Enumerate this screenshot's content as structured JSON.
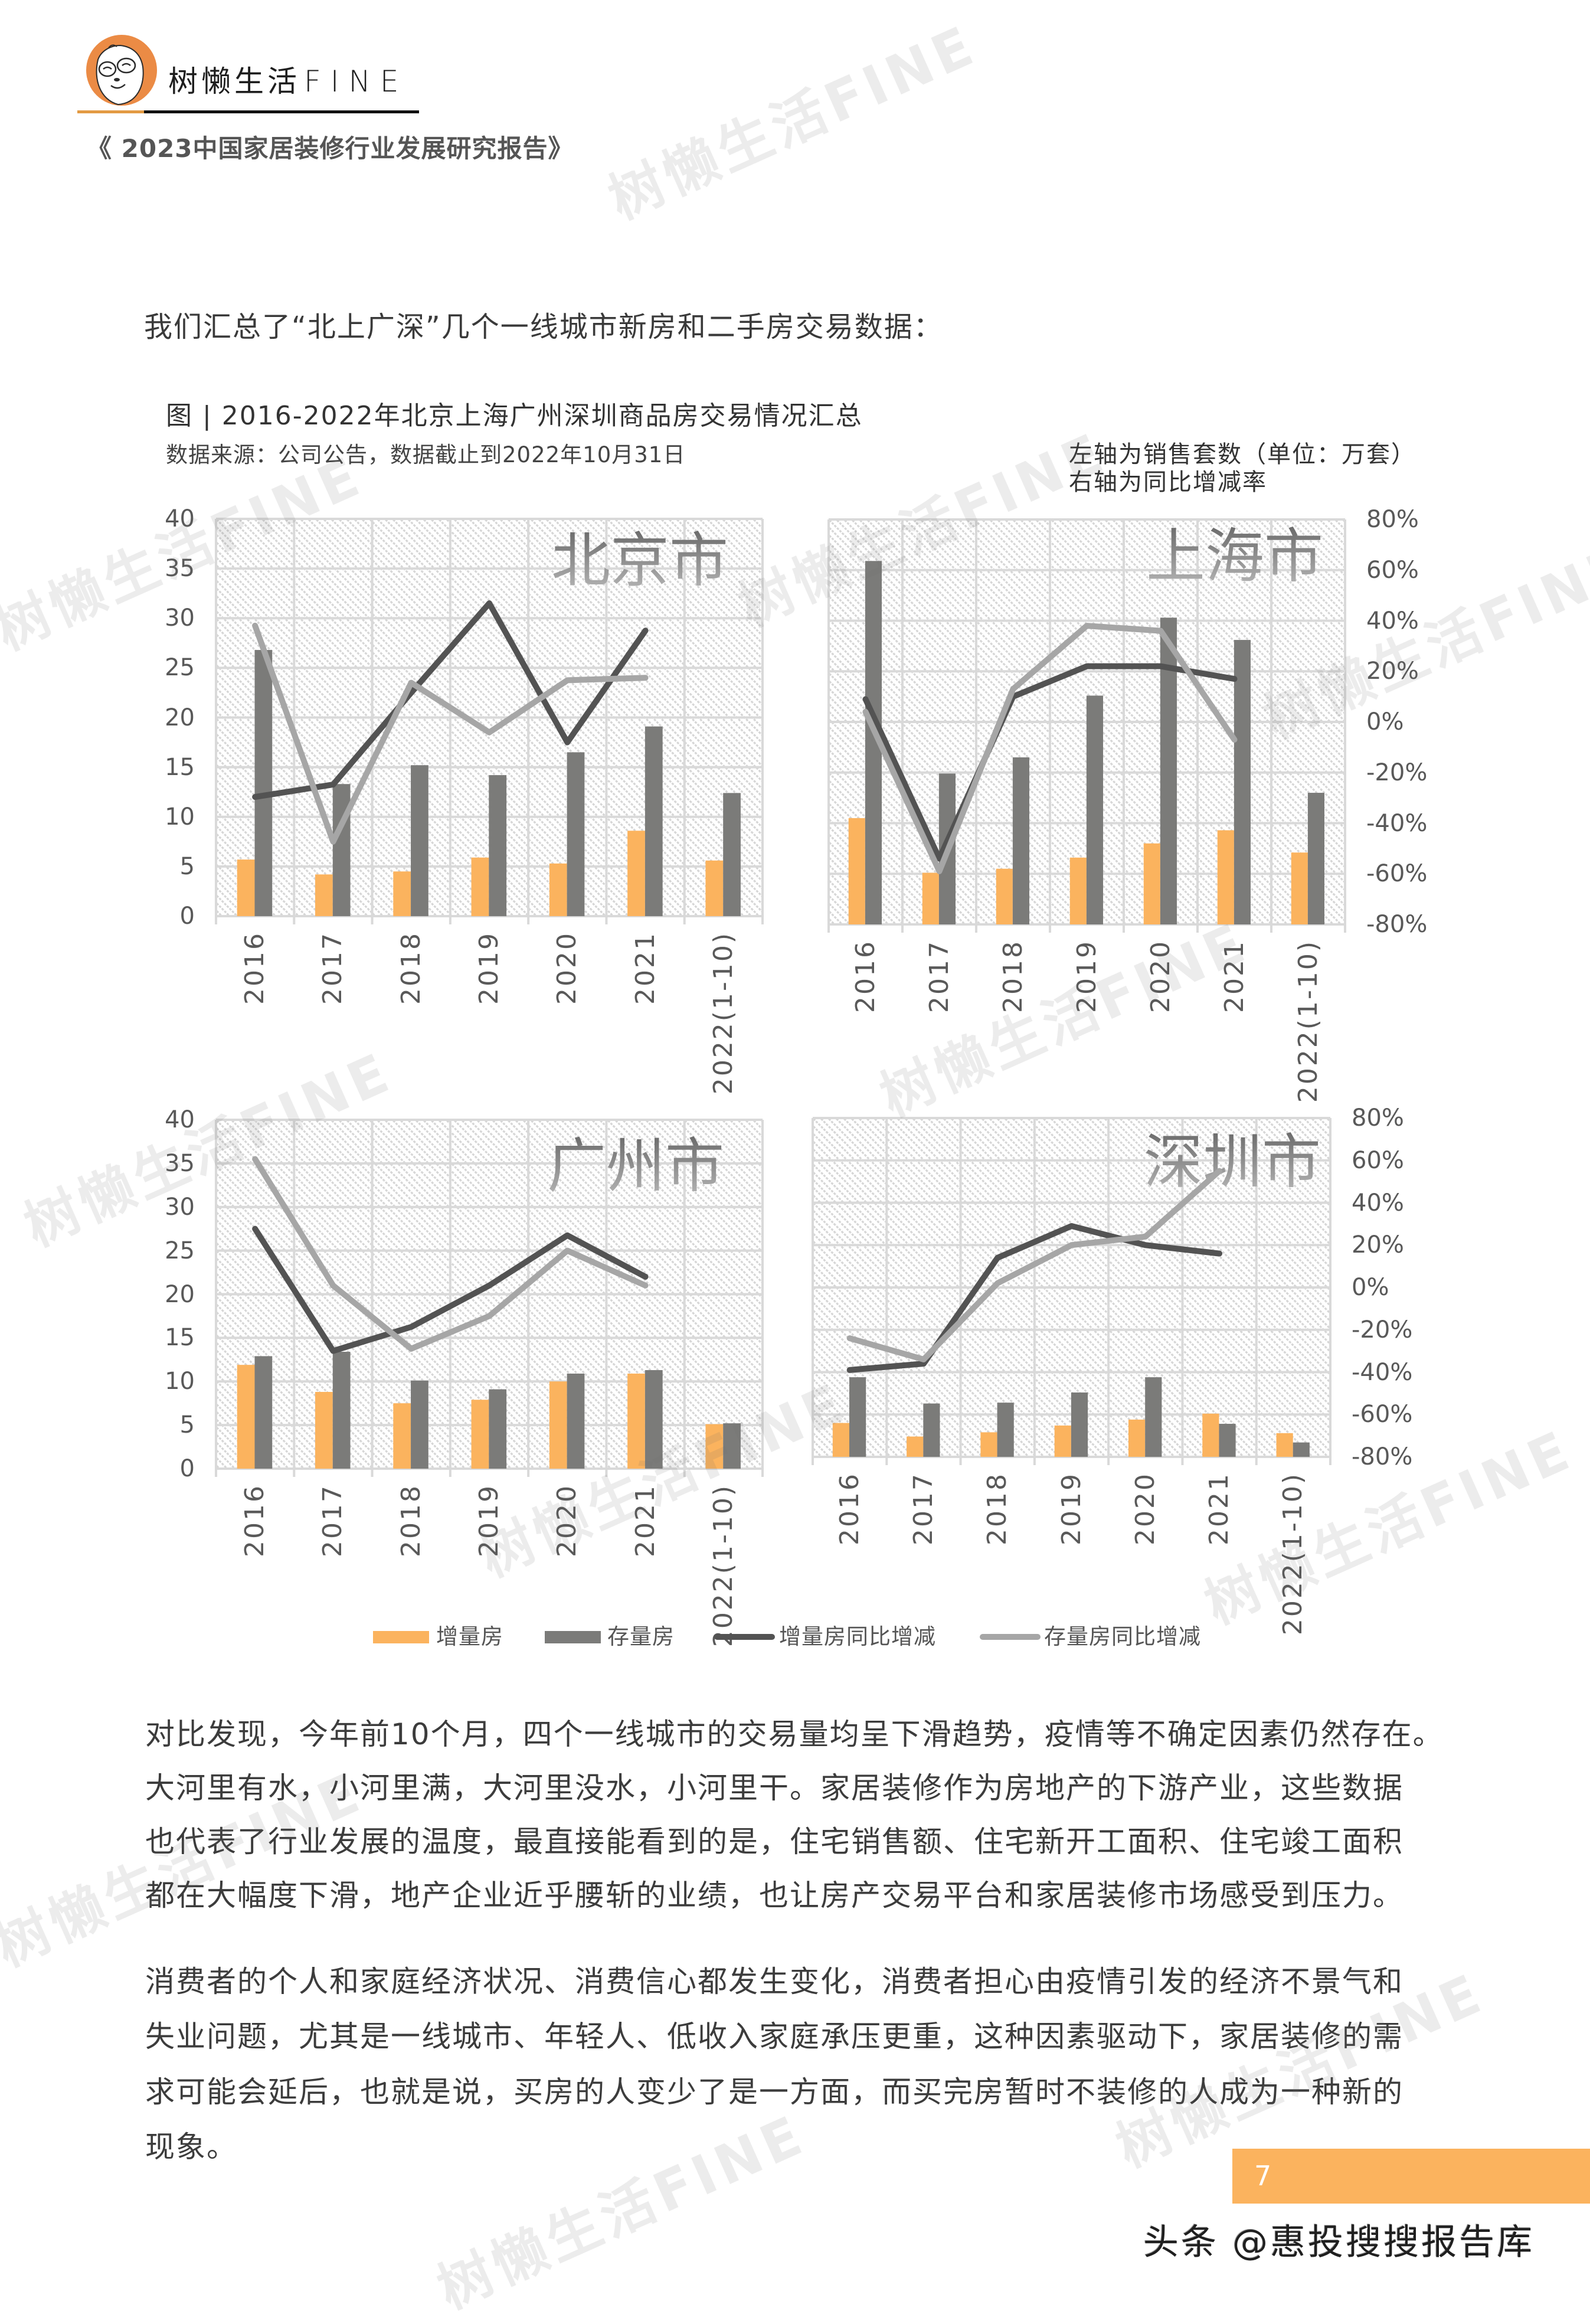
{
  "header": {
    "logo_text_cn": "树懒生活",
    "logo_text_en": "FINE",
    "report_title": "《 2023中国家居装修行业发展研究报告》"
  },
  "intro_text": "我们汇总了“北上广深”几个一线城市新房和二手房交易数据：",
  "figure": {
    "title": "图 | 2016-2022年北京上海广州深圳商品房交易情况汇总",
    "source": "数据来源：公司公告，数据截止到2022年10月31日",
    "axis_note_left": "左轴为销售套数（单位：万套）",
    "axis_note_right": "右轴为同比增减率"
  },
  "colors": {
    "new_bar": "#FBB35E",
    "existing_bar": "#7B7B79",
    "new_yoy_line": "#535353",
    "existing_yoy_line": "#A6A6A6",
    "page_box": "#FBB35E",
    "accent_rule": "#E39A43"
  },
  "legend": [
    {
      "label": "增量房",
      "kind": "bar",
      "color": "#FBB35E"
    },
    {
      "label": "存量房",
      "kind": "bar",
      "color": "#7B7B79"
    },
    {
      "label": "增量房同比增减",
      "kind": "line",
      "color": "#535353"
    },
    {
      "label": "存量房同比增减",
      "kind": "line",
      "color": "#A6A6A6"
    }
  ],
  "chart_data": [
    {
      "type": "bar+line",
      "title": "北京市",
      "categories": [
        "2016",
        "2017",
        "2018",
        "2019",
        "2020",
        "2021",
        "2022(1-10)"
      ],
      "left_axis": {
        "visible": true,
        "range": [
          0,
          40
        ],
        "ticks": [
          "40",
          "35",
          "30",
          "25",
          "20",
          "15",
          "10",
          "5",
          "0"
        ]
      },
      "right_axis": {
        "visible": false,
        "range": [
          -80,
          80
        ],
        "ticks": [
          "80%",
          "60%",
          "40%",
          "20%",
          "0%",
          "-20%",
          "-40%",
          "-60%",
          "-80%"
        ]
      },
      "grid": true,
      "series": [
        {
          "name": "增量房",
          "type": "bar",
          "axis": "left",
          "color": "#FBB35E",
          "values": [
            5.7,
            4.2,
            4.5,
            5.9,
            5.3,
            8.6,
            5.6
          ]
        },
        {
          "name": "存量房",
          "type": "bar",
          "axis": "left",
          "color": "#7B7B79",
          "values": [
            26.8,
            13.3,
            15.2,
            14.2,
            16.5,
            19.1,
            12.4
          ]
        },
        {
          "name": "增量房同比增减",
          "type": "line",
          "axis": "right",
          "unit": "%",
          "color": "#535353",
          "values": [
            -32,
            -27,
            10,
            46,
            -10,
            35,
            null
          ]
        },
        {
          "name": "存量房同比增减",
          "type": "line",
          "axis": "right",
          "unit": "%",
          "color": "#A6A6A6",
          "values": [
            37,
            -50,
            14,
            -6,
            15,
            16,
            null
          ]
        }
      ]
    },
    {
      "type": "bar+line",
      "title": "上海市",
      "categories": [
        "2016",
        "2017",
        "2018",
        "2019",
        "2020",
        "2021",
        "2022(1-10)"
      ],
      "left_axis": {
        "visible": false,
        "range": [
          0,
          40
        ],
        "ticks": [
          "40",
          "35",
          "30",
          "25",
          "20",
          "15",
          "10",
          "5",
          "0"
        ]
      },
      "right_axis": {
        "visible": true,
        "range": [
          -80,
          80
        ],
        "ticks": [
          "80%",
          "60%",
          "40%",
          "20%",
          "0%",
          "-20%",
          "-40%",
          "-60%",
          "-80%"
        ]
      },
      "grid": true,
      "series": [
        {
          "name": "增量房",
          "type": "bar",
          "axis": "left",
          "color": "#FBB35E",
          "values": [
            10.5,
            5.1,
            5.5,
            6.6,
            8.0,
            9.3,
            7.1
          ]
        },
        {
          "name": "存量房",
          "type": "bar",
          "axis": "left",
          "color": "#7B7B79",
          "values": [
            35.9,
            14.9,
            16.5,
            22.6,
            30.3,
            28.1,
            13.0
          ]
        },
        {
          "name": "增量房同比增减",
          "type": "line",
          "axis": "right",
          "unit": "%",
          "color": "#535353",
          "values": [
            9,
            -54,
            10,
            22,
            22,
            17,
            null
          ]
        },
        {
          "name": "存量房同比增减",
          "type": "line",
          "axis": "right",
          "unit": "%",
          "color": "#A6A6A6",
          "values": [
            4,
            -59,
            13,
            38,
            36,
            -7,
            null
          ]
        }
      ]
    },
    {
      "type": "bar+line",
      "title": "广州市",
      "categories": [
        "2016",
        "2017",
        "2018",
        "2019",
        "2020",
        "2021",
        "2022(1-10)"
      ],
      "left_axis": {
        "visible": true,
        "range": [
          0,
          40
        ],
        "ticks": [
          "40",
          "35",
          "30",
          "25",
          "20",
          "15",
          "10",
          "5",
          "0"
        ]
      },
      "right_axis": {
        "visible": false,
        "range": [
          -80,
          80
        ],
        "ticks": [
          "80%",
          "60%",
          "40%",
          "20%",
          "0%",
          "-20%",
          "-40%",
          "-60%",
          "-80%"
        ]
      },
      "grid": true,
      "series": [
        {
          "name": "增量房",
          "type": "bar",
          "axis": "left",
          "color": "#FBB35E",
          "values": [
            11.9,
            8.8,
            7.5,
            7.9,
            10.0,
            10.9,
            5.1
          ]
        },
        {
          "name": "存量房",
          "type": "bar",
          "axis": "left",
          "color": "#7B7B79",
          "values": [
            12.9,
            13.4,
            10.1,
            9.1,
            10.9,
            11.3,
            5.2
          ]
        },
        {
          "name": "增量房同比增减",
          "type": "line",
          "axis": "right",
          "unit": "%",
          "color": "#535353",
          "values": [
            30,
            -26,
            -15,
            4,
            27,
            8,
            null
          ]
        },
        {
          "name": "存量房同比增减",
          "type": "line",
          "axis": "right",
          "unit": "%",
          "color": "#A6A6A6",
          "values": [
            62,
            4,
            -25,
            -10,
            20,
            4,
            null
          ]
        }
      ]
    },
    {
      "type": "bar+line",
      "title": "深圳市",
      "categories": [
        "2016",
        "2017",
        "2018",
        "2019",
        "2020",
        "2021",
        "2022(1-10)"
      ],
      "left_axis": {
        "visible": false,
        "range": [
          0,
          40
        ],
        "ticks": [
          "40",
          "35",
          "30",
          "25",
          "20",
          "15",
          "10",
          "5",
          "0"
        ]
      },
      "right_axis": {
        "visible": true,
        "range": [
          -80,
          80
        ],
        "ticks": [
          "80%",
          "60%",
          "40%",
          "20%",
          "0%",
          "-20%",
          "-40%",
          "-60%",
          "-80%"
        ]
      },
      "grid": true,
      "series": [
        {
          "name": "增量房",
          "type": "bar",
          "axis": "left",
          "color": "#FBB35E",
          "values": [
            4.0,
            2.4,
            2.9,
            3.7,
            4.4,
            5.1,
            2.8
          ]
        },
        {
          "name": "存量房",
          "type": "bar",
          "axis": "left",
          "color": "#7B7B79",
          "values": [
            9.4,
            6.3,
            6.4,
            7.6,
            9.4,
            3.9,
            1.7
          ]
        },
        {
          "name": "增量房同比增减",
          "type": "line",
          "axis": "right",
          "unit": "%",
          "color": "#535353",
          "values": [
            -39,
            -36,
            14,
            29,
            20,
            16,
            null
          ]
        },
        {
          "name": "存量房同比增减",
          "type": "line",
          "axis": "right",
          "unit": "%",
          "color": "#A6A6A6",
          "values": [
            -24,
            -34,
            2,
            20,
            24,
            55,
            null
          ]
        }
      ]
    }
  ],
  "body": {
    "paragraph_1": [
      "对比发现，今年前10个月，四个一线城市的交易量均呈下滑趋势，疫情等不确定因素仍然存在。",
      "大河里有水，小河里满，大河里没水，小河里干。家居装修作为房地产的下游产业，这些数据",
      "也代表了行业发展的温度，最直接能看到的是，住宅销售额、住宅新开工面积、住宅竣工面积",
      "都在大幅度下滑，地产企业近乎腰斩的业绩，也让房产交易平台和家居装修市场感受到压力。"
    ],
    "paragraph_2": [
      "消费者的个人和家庭经济状况、消费信心都发生变化，消费者担心由疫情引发的经济不景气和",
      "失业问题，尤其是一线城市、年轻人、低收入家庭承压更重，这种因素驱动下，家居装修的需",
      "求可能会延后，也就是说，买房的人变少了是一方面，而买完房暂时不装修的人成为一种新的",
      "现象。"
    ]
  },
  "footer": {
    "page_number": "7",
    "attribution": "头条 @惠投搜搜报告库"
  },
  "watermark": {
    "text": "树懒生活FINE"
  }
}
